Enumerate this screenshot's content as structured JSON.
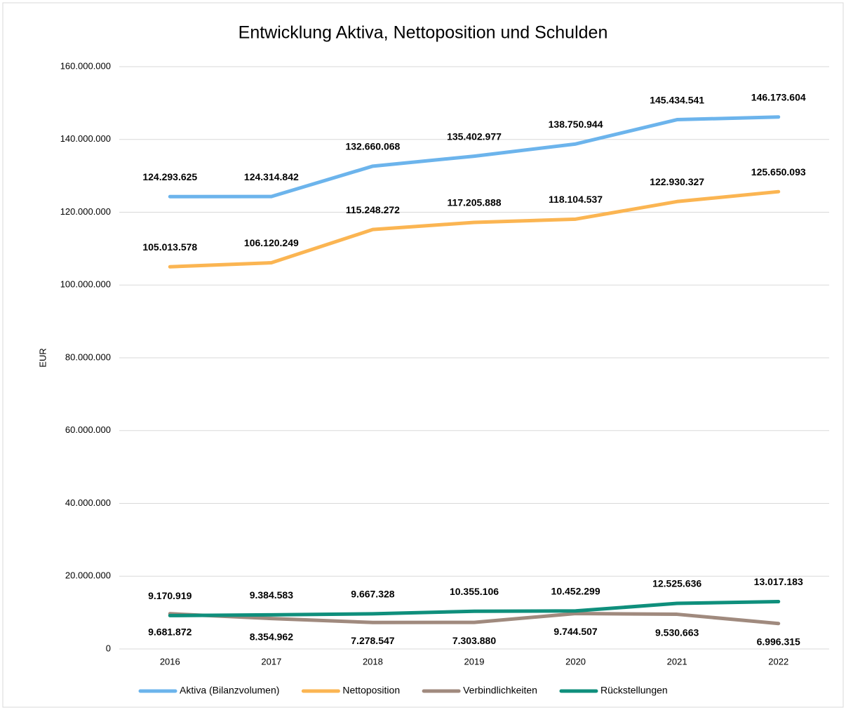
{
  "chart_data": {
    "type": "line",
    "title": "Entwicklung Aktiva, Nettoposition und Schulden",
    "y_label": "EUR",
    "categories": [
      "2016",
      "2017",
      "2018",
      "2019",
      "2020",
      "2021",
      "2022"
    ],
    "ylim": [
      0,
      160000000
    ],
    "yticks": [
      0,
      {
        "value": 20000000,
        "label": "20.000.000"
      },
      {
        "value": 40000000,
        "label": "40.000.000"
      },
      {
        "value": 60000000,
        "label": "60.000.000"
      },
      {
        "value": 80000000,
        "label": "80.000.000"
      },
      {
        "value": 100000000,
        "label": "100.000.000"
      },
      {
        "value": 120000000,
        "label": "120.000.000"
      },
      {
        "value": 140000000,
        "label": "140.000.000"
      },
      {
        "value": 160000000,
        "label": "160.000.000"
      }
    ],
    "grid": true,
    "legend": "bottom",
    "series": [
      {
        "name": "Aktiva (Bilanzvolumen)",
        "color": "#6cb4ec",
        "label_position": "above",
        "values": [
          124293625,
          124314842,
          132660068,
          135402977,
          138750944,
          145434541,
          146173604
        ],
        "value_labels": [
          "124.293.625",
          "124.314.842",
          "132.660.068",
          "135.402.977",
          "138.750.944",
          "145.434.541",
          "146.173.604"
        ]
      },
      {
        "name": "Nettoposition",
        "color": "#fbb552",
        "label_position": "above",
        "values": [
          105013578,
          106120249,
          115248272,
          117205888,
          118104537,
          122930327,
          125650093
        ],
        "value_labels": [
          "105.013.578",
          "106.120.249",
          "115.248.272",
          "117.205.888",
          "118.104.537",
          "122.930.327",
          "125.650.093"
        ]
      },
      {
        "name": "Verbindlichkeiten",
        "color": "#a08a7e",
        "label_position": "below",
        "values": [
          9681872,
          8354962,
          7278547,
          7303880,
          9744507,
          9530663,
          6996315
        ],
        "value_labels": [
          "9.681.872",
          "8.354.962",
          "7.278.547",
          "7.303.880",
          "9.744.507",
          "9.530.663",
          "6.996.315"
        ]
      },
      {
        "name": "Rückstellungen",
        "color": "#0f8f7c",
        "label_position": "above",
        "values": [
          9170919,
          9384583,
          9667328,
          10355106,
          10452299,
          12525636,
          13017183
        ],
        "value_labels": [
          "9.170.919",
          "9.384.583",
          "9.667.328",
          "10.355.106",
          "10.452.299",
          "12.525.636",
          "13.017.183"
        ]
      }
    ]
  }
}
